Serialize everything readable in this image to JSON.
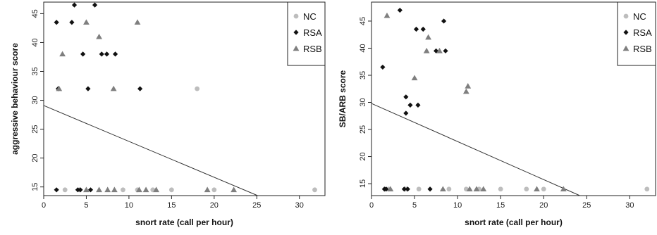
{
  "colors": {
    "NC": "#bdbdbd",
    "RSA": "#111111",
    "RSB": "#7f7f7f",
    "line": "#333333"
  },
  "chart_data": [
    {
      "type": "scatter",
      "title": "",
      "xlabel": "snort rate (call per hour)",
      "ylabel": "aggressive behaviour score",
      "xlim": [
        0,
        33
      ],
      "ylim": [
        13.5,
        47
      ],
      "x_ticks": [
        0,
        5,
        10,
        15,
        20,
        25,
        30
      ],
      "y_ticks": [
        15,
        20,
        25,
        30,
        35,
        40,
        45
      ],
      "legend_position": "top-right",
      "legend": [
        "NC",
        "RSA",
        "RSB"
      ],
      "grid": false,
      "series": [
        {
          "name": "NC",
          "marker": "circle",
          "points": [
            [
              2.5,
              14.5
            ],
            [
              4.2,
              14.5
            ],
            [
              9.3,
              14.5
            ],
            [
              11,
              14.5
            ],
            [
              12.8,
              14.5
            ],
            [
              15,
              14.5
            ],
            [
              18,
              32
            ],
            [
              20,
              14.5
            ],
            [
              31.8,
              14.5
            ]
          ]
        },
        {
          "name": "RSA",
          "marker": "diamond",
          "points": [
            [
              1.5,
              43.5
            ],
            [
              1.7,
              32
            ],
            [
              1.5,
              14.5
            ],
            [
              3.3,
              43.5
            ],
            [
              3.6,
              46.5
            ],
            [
              4,
              14.5
            ],
            [
              4.3,
              14.5
            ],
            [
              4.6,
              38
            ],
            [
              5.2,
              32
            ],
            [
              5.5,
              14.5
            ],
            [
              6,
              46.5
            ],
            [
              6.8,
              38
            ],
            [
              7.4,
              38
            ],
            [
              8.4,
              38
            ],
            [
              11.3,
              32
            ]
          ]
        },
        {
          "name": "RSB",
          "marker": "triangle",
          "points": [
            [
              1.8,
              32
            ],
            [
              2.2,
              38
            ],
            [
              5,
              43.5
            ],
            [
              5,
              14.5
            ],
            [
              6.5,
              41
            ],
            [
              6.5,
              14.5
            ],
            [
              7.5,
              14.5
            ],
            [
              8.2,
              32
            ],
            [
              8.3,
              14.5
            ],
            [
              11,
              43.5
            ],
            [
              11.2,
              14.5
            ],
            [
              12,
              14.5
            ],
            [
              13.2,
              14.5
            ],
            [
              19.2,
              14.5
            ],
            [
              22.3,
              14.5
            ]
          ]
        }
      ],
      "regression_line": [
        [
          0,
          29.1
        ],
        [
          25.1,
          13.5
        ]
      ]
    },
    {
      "type": "scatter",
      "title": "",
      "xlabel": "snort rate (call per hour)",
      "ylabel": "SB/ARB score",
      "xlim": [
        0,
        33
      ],
      "ylim": [
        12.8,
        48.5
      ],
      "x_ticks": [
        0,
        5,
        10,
        15,
        20,
        25,
        30
      ],
      "y_ticks": [
        15,
        20,
        25,
        30,
        35,
        40,
        45
      ],
      "legend_position": "top-right",
      "legend": [
        "NC",
        "RSA",
        "RSB"
      ],
      "grid": false,
      "series": [
        {
          "name": "NC",
          "marker": "circle",
          "points": [
            [
              2,
              14
            ],
            [
              4,
              14
            ],
            [
              5.5,
              14
            ],
            [
              9,
              14
            ],
            [
              11,
              14
            ],
            [
              12.5,
              14
            ],
            [
              15,
              14
            ],
            [
              18,
              14
            ],
            [
              20,
              14
            ],
            [
              32,
              14
            ]
          ]
        },
        {
          "name": "RSA",
          "marker": "diamond",
          "points": [
            [
              1.3,
              36.5
            ],
            [
              1.5,
              14
            ],
            [
              1.7,
              14
            ],
            [
              3.3,
              47
            ],
            [
              3.8,
              14
            ],
            [
              4,
              31
            ],
            [
              4,
              28
            ],
            [
              4.2,
              14
            ],
            [
              4.5,
              29.5
            ],
            [
              5.2,
              43.5
            ],
            [
              5.4,
              29.5
            ],
            [
              6,
              43.5
            ],
            [
              6.8,
              14
            ],
            [
              7.5,
              39.5
            ],
            [
              8.4,
              45
            ],
            [
              8.6,
              39.5
            ]
          ]
        },
        {
          "name": "RSB",
          "marker": "triangle",
          "points": [
            [
              1.8,
              46
            ],
            [
              2.2,
              14
            ],
            [
              5,
              34.5
            ],
            [
              6.4,
              39.5
            ],
            [
              6.6,
              42
            ],
            [
              7.9,
              39.5
            ],
            [
              8.3,
              14
            ],
            [
              11,
              32
            ],
            [
              11.2,
              33
            ],
            [
              11.4,
              14
            ],
            [
              12.2,
              14
            ],
            [
              13,
              14
            ],
            [
              19.2,
              14
            ],
            [
              22.3,
              14
            ]
          ]
        }
      ],
      "regression_line": [
        [
          0,
          29.8
        ],
        [
          24.2,
          12.8
        ]
      ]
    }
  ]
}
